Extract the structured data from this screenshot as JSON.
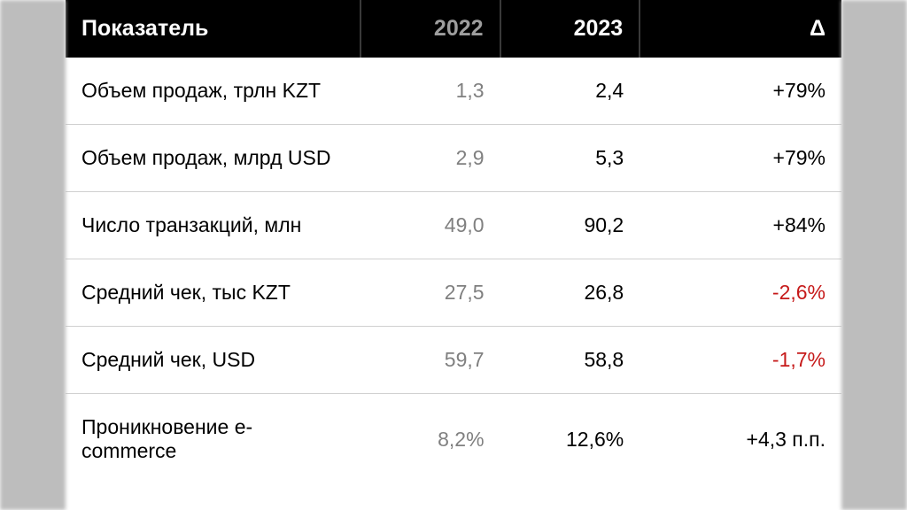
{
  "table": {
    "type": "table",
    "background_color": "#ffffff",
    "side_color": "#bdbdbd",
    "header_bg": "#000000",
    "header_fg": "#ffffff",
    "header_muted_fg": "#9e9e9e",
    "header_divider": "#3a3a3a",
    "row_border": "#d0d0d0",
    "pos_color": "#000000",
    "neg_color": "#c61a1a",
    "v2022_color": "#808080",
    "v2023_color": "#000000",
    "header_fontsize": 25,
    "cell_fontsize": 23,
    "col_widths_pct": [
      38,
      18,
      18,
      26
    ],
    "columns": {
      "metric": "Показатель",
      "y2022": "2022",
      "y2023": "2023",
      "delta": "Δ"
    },
    "rows": [
      {
        "metric": "Объем продаж, трлн KZT",
        "v2022": "1,3",
        "v2023": "2,4",
        "delta": "+79%",
        "delta_sign": "pos"
      },
      {
        "metric": "Объем продаж, млрд USD",
        "v2022": "2,9",
        "v2023": "5,3",
        "delta": "+79%",
        "delta_sign": "pos"
      },
      {
        "metric": "Число транзакций, млн",
        "v2022": "49,0",
        "v2023": "90,2",
        "delta": "+84%",
        "delta_sign": "pos"
      },
      {
        "metric": "Средний чек, тыс KZT",
        "v2022": "27,5",
        "v2023": "26,8",
        "delta": "-2,6%",
        "delta_sign": "neg"
      },
      {
        "metric": "Средний чек, USD",
        "v2022": "59,7",
        "v2023": "58,8",
        "delta": "-1,7%",
        "delta_sign": "neg"
      },
      {
        "metric": "Проникновение e-commerce",
        "v2022": "8,2%",
        "v2023": "12,6%",
        "delta": "+4,3 п.п.",
        "delta_sign": "pos"
      }
    ]
  }
}
